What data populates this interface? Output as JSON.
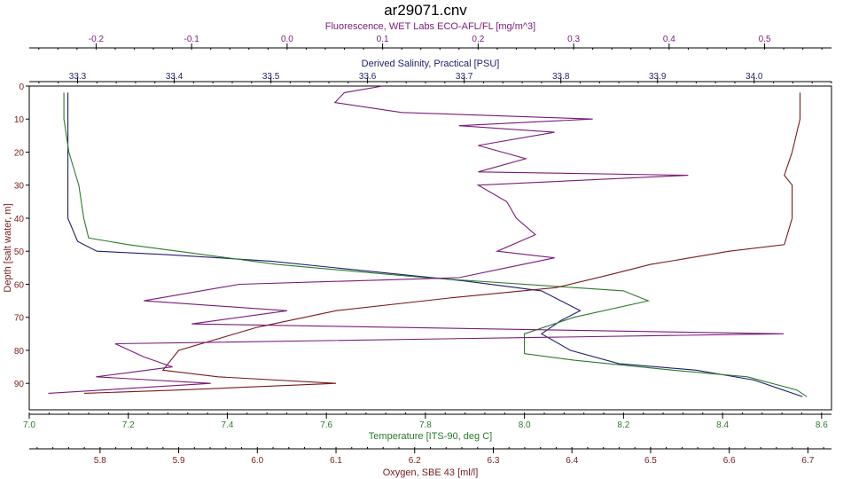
{
  "title": "ar29071.cnv",
  "colors": {
    "fluorescence": "#7a1a7a",
    "salinity": "#1f1f6e",
    "temperature": "#2a7a2a",
    "oxygen": "#7a1a1a",
    "depth": "#7a1a1a",
    "frame": "#000000"
  },
  "chart_data": {
    "type": "line",
    "title": "ar29071.cnv",
    "grid": false,
    "legend": "none",
    "y_axis": {
      "label": "Depth [salt water, m]",
      "range": [
        0,
        98
      ],
      "inverted": true,
      "ticks": [
        0,
        10,
        20,
        30,
        40,
        50,
        60,
        70,
        80,
        90
      ]
    },
    "x_axes": [
      {
        "key": "fluorescence",
        "label": "Fluorescence, WET Labs ECO-AFL/FL [mg/m^3]",
        "position": "top-outer",
        "range": [
          -0.27,
          0.57
        ],
        "ticks": [
          -0.2,
          -0.1,
          0.0,
          0.1,
          0.2,
          0.3,
          0.4,
          0.5
        ],
        "tick_labels": [
          "-0.2",
          "-0.1",
          "0.0",
          "0.1",
          "0.2",
          "0.3",
          "0.4",
          "0.5"
        ]
      },
      {
        "key": "salinity",
        "label": "Derived Salinity, Practical [PSU]",
        "position": "top-inner",
        "range": [
          33.25,
          34.08
        ],
        "ticks": [
          33.3,
          33.4,
          33.5,
          33.6,
          33.7,
          33.8,
          33.9,
          34.0
        ],
        "tick_labels": [
          "33.3",
          "33.4",
          "33.5",
          "33.6",
          "33.7",
          "33.8",
          "33.9",
          "34.0"
        ]
      },
      {
        "key": "temperature",
        "label": "Temperature [ITS-90, deg C]",
        "position": "bottom-inner",
        "range": [
          7.0,
          8.62
        ],
        "ticks": [
          7.0,
          7.2,
          7.4,
          7.6,
          7.8,
          8.0,
          8.2,
          8.4,
          8.6
        ],
        "tick_labels": [
          "7.0",
          "7.2",
          "7.4",
          "7.6",
          "7.8",
          "8.0",
          "8.2",
          "8.4",
          "8.6"
        ]
      },
      {
        "key": "oxygen",
        "label": "Oxygen, SBE 43 [ml/l]",
        "position": "bottom-outer",
        "range": [
          5.71,
          6.73
        ],
        "ticks": [
          5.8,
          5.9,
          6.0,
          6.1,
          6.2,
          6.3,
          6.4,
          6.5,
          6.6,
          6.7
        ],
        "tick_labels": [
          "5.8",
          "5.9",
          "6.0",
          "6.1",
          "6.2",
          "6.3",
          "6.4",
          "6.5",
          "6.6",
          "6.7"
        ]
      }
    ],
    "series": [
      {
        "key": "salinity",
        "axis": "salinity",
        "points": [
          [
            33.29,
            2
          ],
          [
            33.29,
            10
          ],
          [
            33.29,
            20
          ],
          [
            33.29,
            30
          ],
          [
            33.29,
            40
          ],
          [
            33.3,
            47
          ],
          [
            33.32,
            50
          ],
          [
            33.39,
            51
          ],
          [
            33.5,
            53
          ],
          [
            33.6,
            56
          ],
          [
            33.7,
            59
          ],
          [
            33.78,
            62
          ],
          [
            33.8,
            65
          ],
          [
            33.82,
            68
          ],
          [
            33.8,
            71
          ],
          [
            33.78,
            75
          ],
          [
            33.81,
            80
          ],
          [
            33.86,
            84
          ],
          [
            33.94,
            86
          ],
          [
            34.0,
            89
          ],
          [
            34.03,
            92
          ],
          [
            34.05,
            94
          ]
        ]
      },
      {
        "key": "temperature",
        "axis": "temperature",
        "points": [
          [
            7.07,
            2
          ],
          [
            7.07,
            10
          ],
          [
            7.08,
            20
          ],
          [
            7.09,
            25
          ],
          [
            7.1,
            30
          ],
          [
            7.11,
            40
          ],
          [
            7.12,
            46
          ],
          [
            7.2,
            48
          ],
          [
            7.3,
            50
          ],
          [
            7.5,
            54
          ],
          [
            7.8,
            58
          ],
          [
            8.1,
            61
          ],
          [
            8.2,
            62
          ],
          [
            8.25,
            65
          ],
          [
            8.1,
            70
          ],
          [
            8.0,
            75
          ],
          [
            8.0,
            81
          ],
          [
            8.1,
            83
          ],
          [
            8.3,
            86
          ],
          [
            8.45,
            88
          ],
          [
            8.55,
            92
          ],
          [
            8.57,
            94
          ]
        ]
      },
      {
        "key": "oxygen",
        "axis": "oxygen",
        "points": [
          [
            6.69,
            2
          ],
          [
            6.69,
            10
          ],
          [
            6.68,
            20
          ],
          [
            6.67,
            27
          ],
          [
            6.68,
            30
          ],
          [
            6.68,
            40
          ],
          [
            6.67,
            48
          ],
          [
            6.6,
            50
          ],
          [
            6.55,
            52
          ],
          [
            6.5,
            54
          ],
          [
            6.45,
            57
          ],
          [
            6.38,
            61
          ],
          [
            6.25,
            64
          ],
          [
            6.1,
            68
          ],
          [
            6.0,
            73
          ],
          [
            5.9,
            80
          ],
          [
            5.88,
            86
          ],
          [
            5.95,
            88
          ],
          [
            6.1,
            90
          ],
          [
            5.9,
            92
          ],
          [
            5.78,
            93
          ]
        ]
      },
      {
        "key": "fluorescence",
        "axis": "fluorescence",
        "points": [
          [
            0.1,
            0
          ],
          [
            0.06,
            2
          ],
          [
            0.05,
            5
          ],
          [
            0.12,
            8
          ],
          [
            0.32,
            10
          ],
          [
            0.18,
            12
          ],
          [
            0.28,
            14
          ],
          [
            0.2,
            18
          ],
          [
            0.25,
            22
          ],
          [
            0.2,
            26
          ],
          [
            0.42,
            27
          ],
          [
            0.2,
            30
          ],
          [
            0.23,
            35
          ],
          [
            0.24,
            40
          ],
          [
            0.26,
            45
          ],
          [
            0.22,
            50
          ],
          [
            0.28,
            52
          ],
          [
            0.23,
            55
          ],
          [
            0.18,
            58
          ],
          [
            -0.05,
            60
          ],
          [
            -0.15,
            65
          ],
          [
            0.0,
            68
          ],
          [
            -0.1,
            72
          ],
          [
            0.52,
            75
          ],
          [
            -0.18,
            78
          ],
          [
            -0.15,
            82
          ],
          [
            -0.12,
            85
          ],
          [
            -0.2,
            88
          ],
          [
            -0.08,
            90
          ],
          [
            -0.25,
            93
          ]
        ]
      }
    ]
  }
}
